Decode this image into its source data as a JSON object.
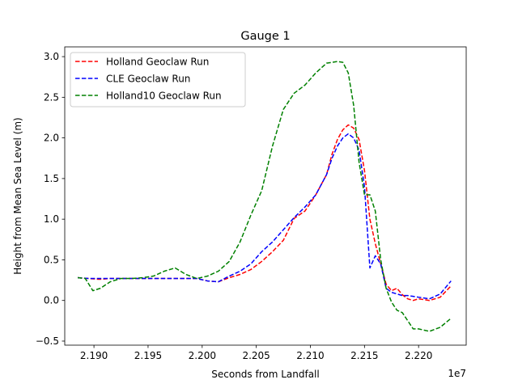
{
  "chart_data": {
    "type": "line",
    "title": "Gauge 1",
    "xlabel": "Seconds from Landfall",
    "ylabel": "Height from Mean Sea Level (m)",
    "x_offset_label": "1e7",
    "xlim": [
      2.1873,
      2.2244
    ],
    "ylim": [
      -0.55,
      3.12
    ],
    "x_ticks": [
      2.19,
      2.195,
      2.2,
      2.205,
      2.21,
      2.215,
      2.22
    ],
    "x_tick_labels": [
      "2.190",
      "2.195",
      "2.200",
      "2.205",
      "2.210",
      "2.215",
      "2.220"
    ],
    "y_ticks": [
      -0.5,
      0.0,
      0.5,
      1.0,
      1.5,
      2.0,
      2.5,
      3.0
    ],
    "y_tick_labels": [
      "−0.5",
      "0.0",
      "0.5",
      "1.0",
      "1.5",
      "2.0",
      "2.5",
      "3.0"
    ],
    "grid": false,
    "legend_position": "top-left",
    "series": [
      {
        "name": "Holland Geoclaw Run",
        "color": "#ff0000",
        "dash": "dashed",
        "x": [
          2.1885,
          2.1895,
          2.1905,
          2.1915,
          2.1925,
          2.1935,
          2.1945,
          2.1955,
          2.1965,
          2.1975,
          2.1985,
          2.1995,
          2.2005,
          2.2015,
          2.2025,
          2.2035,
          2.2045,
          2.2055,
          2.2065,
          2.2075,
          2.2085,
          2.2095,
          2.2105,
          2.2115,
          2.212,
          2.2125,
          2.213,
          2.2135,
          2.214,
          2.2145,
          2.215,
          2.2155,
          2.216,
          2.2165,
          2.217,
          2.2175,
          2.218,
          2.2185,
          2.219,
          2.2195,
          2.22,
          2.221,
          2.222,
          2.223
        ],
        "y": [
          0.28,
          0.27,
          0.26,
          0.27,
          0.27,
          0.27,
          0.27,
          0.27,
          0.27,
          0.27,
          0.27,
          0.27,
          0.24,
          0.23,
          0.28,
          0.32,
          0.38,
          0.48,
          0.6,
          0.74,
          1.01,
          1.1,
          1.3,
          1.55,
          1.8,
          1.98,
          2.1,
          2.16,
          2.12,
          1.98,
          1.6,
          1.0,
          0.7,
          0.45,
          0.2,
          0.12,
          0.15,
          0.07,
          0.02,
          0.0,
          0.02,
          0.0,
          0.04,
          0.18
        ]
      },
      {
        "name": "CLE Geoclaw Run",
        "color": "#0000ff",
        "dash": "dashed",
        "x": [
          2.1885,
          2.1895,
          2.1905,
          2.1915,
          2.1925,
          2.1935,
          2.1945,
          2.1955,
          2.1965,
          2.1975,
          2.1985,
          2.1995,
          2.2005,
          2.2015,
          2.2025,
          2.2035,
          2.2045,
          2.2055,
          2.2065,
          2.2075,
          2.2085,
          2.2095,
          2.2105,
          2.2115,
          2.212,
          2.2125,
          2.213,
          2.2135,
          2.214,
          2.2145,
          2.215,
          2.2155,
          2.216,
          2.2165,
          2.217,
          2.2175,
          2.218,
          2.2185,
          2.219,
          2.2195,
          2.22,
          2.221,
          2.222,
          2.223
        ],
        "y": [
          0.28,
          0.27,
          0.27,
          0.27,
          0.27,
          0.27,
          0.27,
          0.27,
          0.27,
          0.27,
          0.27,
          0.27,
          0.24,
          0.23,
          0.3,
          0.36,
          0.45,
          0.6,
          0.72,
          0.87,
          1.02,
          1.15,
          1.3,
          1.55,
          1.75,
          1.9,
          2.0,
          2.05,
          2.0,
          1.85,
          1.4,
          0.4,
          0.55,
          0.45,
          0.15,
          0.1,
          0.08,
          0.06,
          0.06,
          0.05,
          0.04,
          0.02,
          0.08,
          0.24
        ]
      },
      {
        "name": "Holland10 Geoclaw Run",
        "color": "#008000",
        "dash": "dashed",
        "x": [
          2.1885,
          2.1892,
          2.1899,
          2.1906,
          2.1915,
          2.1925,
          2.1935,
          2.1945,
          2.1955,
          2.1965,
          2.1975,
          2.1985,
          2.1995,
          2.2005,
          2.2015,
          2.2025,
          2.2035,
          2.2045,
          2.2055,
          2.2065,
          2.2075,
          2.2085,
          2.2095,
          2.2105,
          2.2115,
          2.2125,
          2.213,
          2.2135,
          2.214,
          2.2145,
          2.215,
          2.2155,
          2.216,
          2.2165,
          2.217,
          2.2175,
          2.218,
          2.2185,
          2.219,
          2.2195,
          2.22,
          2.221,
          2.222,
          2.223
        ],
        "y": [
          0.28,
          0.27,
          0.12,
          0.15,
          0.23,
          0.27,
          0.27,
          0.28,
          0.3,
          0.36,
          0.4,
          0.32,
          0.27,
          0.3,
          0.36,
          0.48,
          0.72,
          1.05,
          1.35,
          1.9,
          2.35,
          2.55,
          2.65,
          2.8,
          2.92,
          2.94,
          2.93,
          2.8,
          2.4,
          1.7,
          1.3,
          1.3,
          1.1,
          0.5,
          0.15,
          -0.02,
          -0.12,
          -0.15,
          -0.25,
          -0.35,
          -0.35,
          -0.38,
          -0.33,
          -0.22
        ]
      }
    ]
  }
}
